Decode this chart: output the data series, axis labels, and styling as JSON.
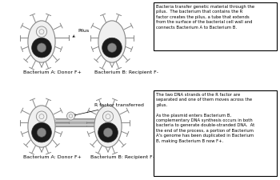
{
  "bg_color": "#ffffff",
  "text_box1": "Bacteria transfer genetic material through the\npilus.  The bacterium that contains the R\nfactor creates the pilus, a tube that extends\nfrom the surface of the bacterial cell wall and\nconnects Bacterium A to Bacterium B.",
  "text_box2": "The two DNA strands of the R factor are\nseparated and one of them moves across the\npilus.\n\nAs the plasmid enters Bacterium B,\ncomplementary DNA synthesis occurs in both\nbacteria to generate double-stranded DNA.  At\nthe end of the process, a portion of Bacterium\nA's genome has been duplicated in Bacterium\nB, making Bacterium B now F+.",
  "label_a1": "Bacterium A: Donor F+",
  "label_b1": "Bacterium B: Recipient F-",
  "label_a2": "Bacterium A: Donor F+",
  "label_b2": "Bacterium B: Recipient F+",
  "label_pilus": "Pilus",
  "label_rfactor": "R factor transferred",
  "positions": {
    "bax1": 52,
    "bay1": 52,
    "bbx1": 140,
    "bby1": 52,
    "bax2": 52,
    "bay2": 158,
    "bbx2": 135,
    "bby2": 158
  }
}
